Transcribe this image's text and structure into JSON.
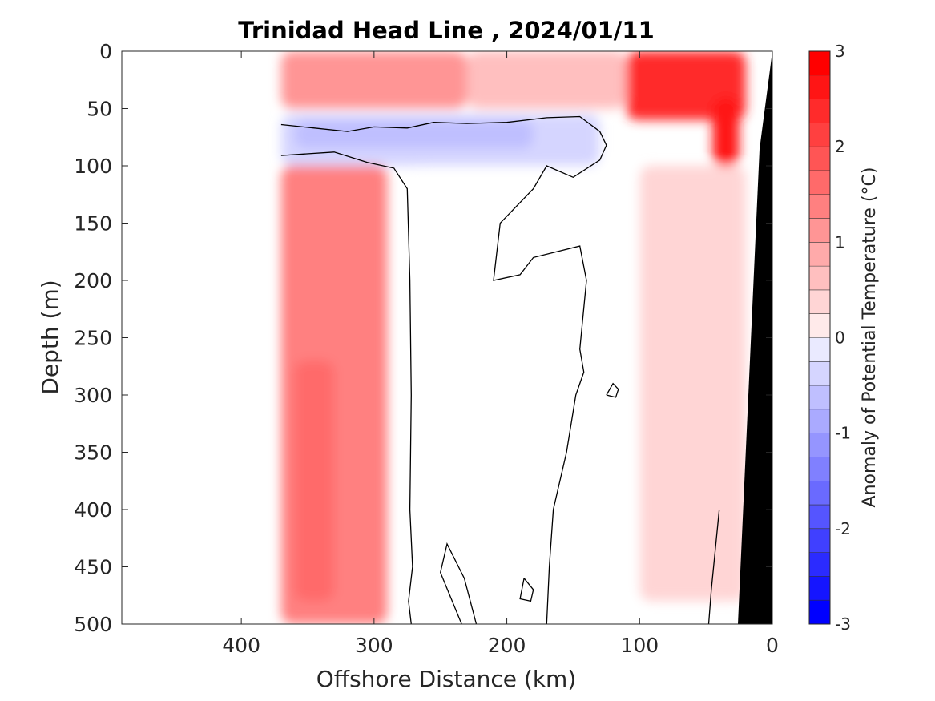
{
  "chart_data": {
    "type": "heatmap",
    "title": "Trinidad Head Line , 2024/01/11",
    "xlabel": "Offshore Distance (km)",
    "ylabel": "Depth (m)",
    "xlim": [
      490,
      0
    ],
    "ylim": [
      0,
      500
    ],
    "x_reversed": true,
    "y_reversed": true,
    "x_ticks": [
      400,
      300,
      200,
      100,
      0
    ],
    "y_ticks": [
      0,
      50,
      100,
      150,
      200,
      250,
      300,
      350,
      400,
      450,
      500
    ],
    "data_coverage_km": [
      370,
      20
    ],
    "colorbar": {
      "label": "Anomaly of Potential Temperature (°C)",
      "range": [
        -3,
        3
      ],
      "step": 0.25,
      "ticks": [
        3,
        2,
        1,
        0,
        -1,
        -2,
        -3
      ],
      "colormap": "blue-white-red",
      "low_color": "#0000ff",
      "high_color": "#ff0000"
    },
    "regions": [
      {
        "name": "upper-layer-offshore",
        "km": [
          370,
          230
        ],
        "depth": [
          0,
          50
        ],
        "anomaly": 1.25
      },
      {
        "name": "upper-layer-mid",
        "km": [
          230,
          110
        ],
        "depth": [
          0,
          50
        ],
        "anomaly": 0.75
      },
      {
        "name": "nearshore-warm-core",
        "km": [
          110,
          20
        ],
        "depth": [
          0,
          60
        ],
        "anomaly": 2.5
      },
      {
        "name": "nearshore-warm-maximum",
        "km": [
          45,
          25
        ],
        "depth": [
          40,
          100
        ],
        "anomaly": 2.75
      },
      {
        "name": "subsurface-cold-layer",
        "km": [
          370,
          130
        ],
        "depth": [
          55,
          100
        ],
        "anomaly": -0.5
      },
      {
        "name": "cold-cores",
        "km": [
          360,
          180
        ],
        "depth": [
          60,
          85
        ],
        "anomaly": -0.75
      },
      {
        "name": "offshore-warm-column",
        "km": [
          370,
          290
        ],
        "depth": [
          100,
          500
        ],
        "anomaly": 1.5
      },
      {
        "name": "offshore-warm-core",
        "km": [
          360,
          330
        ],
        "depth": [
          270,
          480
        ],
        "anomaly": 1.75
      },
      {
        "name": "mid-cold-tongue",
        "km": [
          270,
          180
        ],
        "depth": [
          100,
          330
        ],
        "anomaly": -0.25
      },
      {
        "name": "central-neutral",
        "km": [
          270,
          100
        ],
        "depth": [
          100,
          500
        ],
        "anomaly": 0.0
      },
      {
        "name": "inshore-warm-column",
        "km": [
          100,
          20
        ],
        "depth": [
          100,
          480
        ],
        "anomaly": 0.5
      }
    ]
  }
}
